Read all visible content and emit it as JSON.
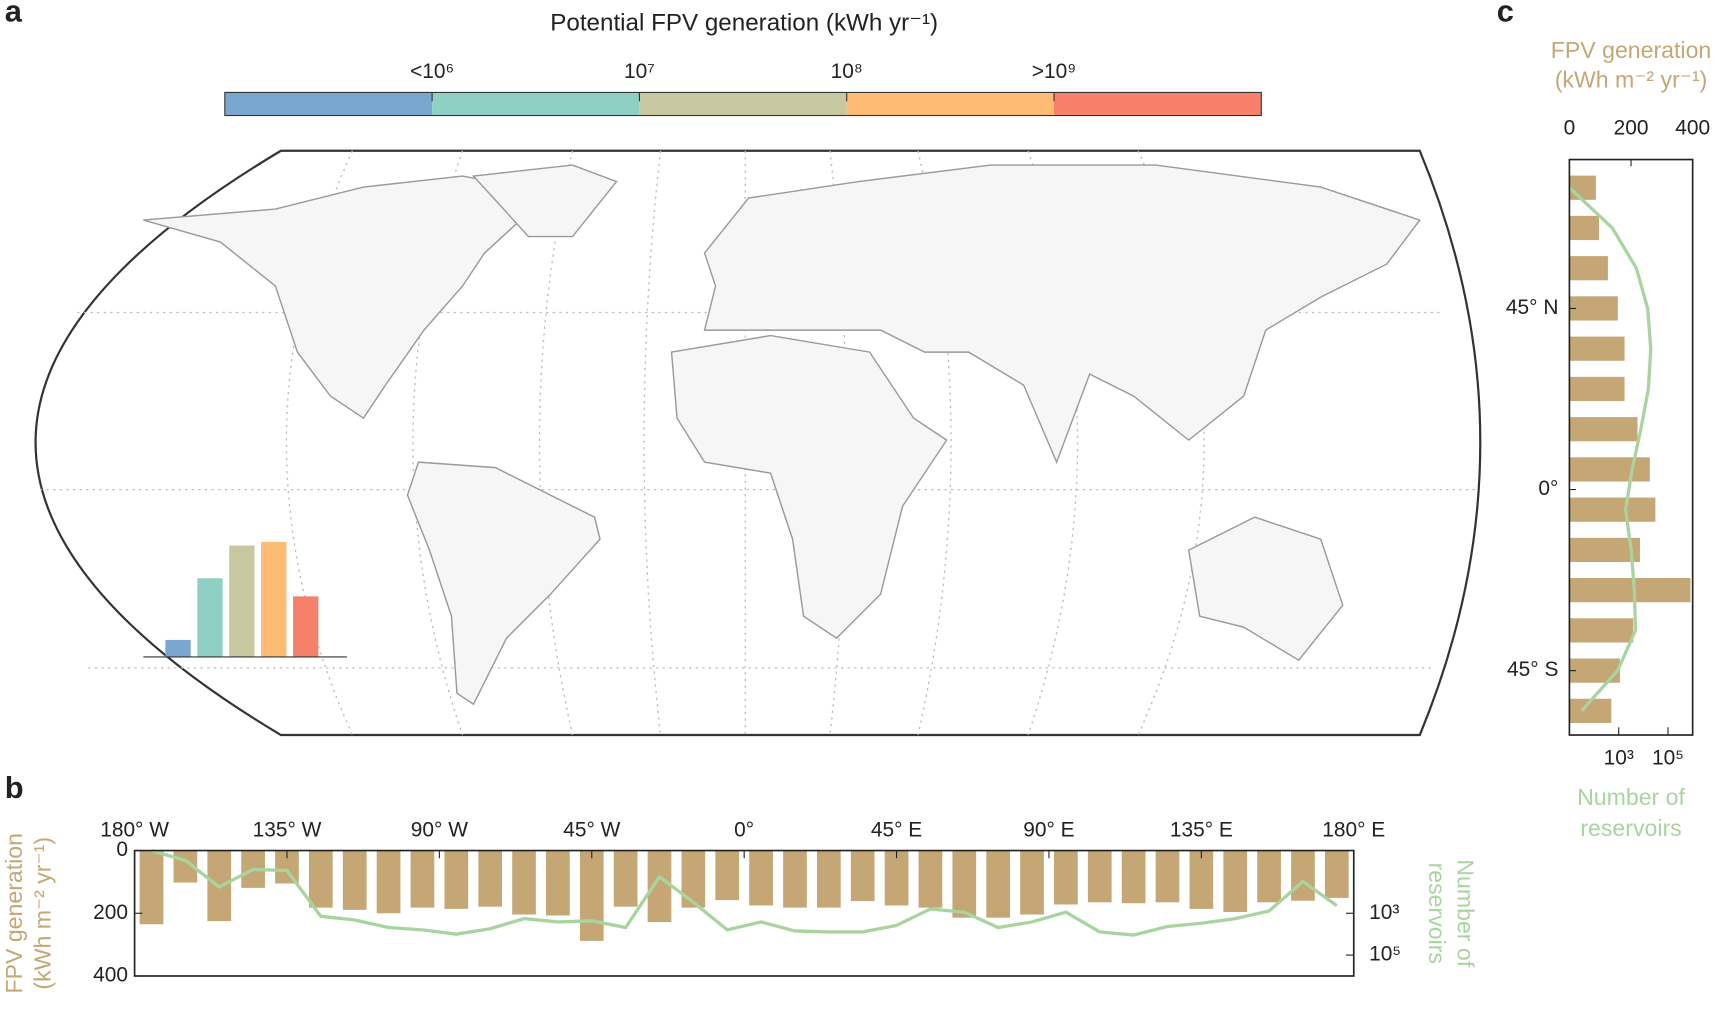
{
  "panel_labels": [
    "a",
    "b",
    "c"
  ],
  "chart_data": [
    {
      "type": "colorbar",
      "title": "Potential FPV generation (kWh yr⁻¹)",
      "colors": [
        "#7aa7d0",
        "#8ed0c4",
        "#c8c8a0",
        "#fdbb74",
        "#f7806b"
      ],
      "tick_labels": [
        "<10⁶",
        "10⁷",
        "10⁸",
        ">10⁹"
      ]
    },
    {
      "type": "bar",
      "categories": [
        null,
        null,
        null,
        null,
        null
      ],
      "values": [
        14,
        65,
        92,
        95,
        50
      ],
      "ylim": [
        0,
        100
      ],
      "colors": [
        "#7aa7d0",
        "#8ed0c4",
        "#c8c8a0",
        "#fdbb74",
        "#f7806b"
      ]
    },
    {
      "type": "bar+line",
      "x": [
        -175,
        -165,
        -155,
        -145,
        -135,
        -125,
        -115,
        -105,
        -95,
        -85,
        -75,
        -65,
        -55,
        -45,
        -35,
        -25,
        -15,
        -5,
        5,
        15,
        25,
        35,
        45,
        55,
        65,
        75,
        85,
        95,
        105,
        115,
        125,
        135,
        145,
        155,
        165,
        175
      ],
      "xlim": [
        -180,
        180
      ],
      "xticks": [
        {
          "value": -180,
          "label": "180° W"
        },
        {
          "value": -135,
          "label": "135° W"
        },
        {
          "value": -90,
          "label": "90° W"
        },
        {
          "value": -45,
          "label": "45° W"
        },
        {
          "value": 0,
          "label": "0°"
        },
        {
          "value": 45,
          "label": "45° E"
        },
        {
          "value": 90,
          "label": "90° E"
        },
        {
          "value": 135,
          "label": "135° E"
        },
        {
          "value": 180,
          "label": "180° E"
        }
      ],
      "ylabel": [
        "FPV generation",
        "(kWh m⁻² yr⁻¹)"
      ],
      "ylim": [
        0,
        400
      ],
      "yticks": [
        0,
        200,
        400
      ],
      "y2label": [
        "Number of",
        "reservoirs"
      ],
      "y2lim": [
        1,
        1000000
      ],
      "y2scale": "log",
      "y2ticks": [
        {
          "value": 1000,
          "label": "10³"
        },
        {
          "value": 100000,
          "label": "10⁵"
        }
      ],
      "series": [
        {
          "color": "#c4a774",
          "values": [
            235,
            102,
            225,
            119,
            105,
            182,
            189,
            200,
            182,
            186,
            179,
            204,
            207,
            288,
            179,
            228,
            182,
            158,
            175,
            182,
            182,
            161,
            175,
            182,
            214,
            214,
            204,
            172,
            165,
            168,
            165,
            186,
            196,
            165,
            160,
            151
          ]
        },
        {
          "color": "#a9d4a0",
          "axis": "y2",
          "values": [
            1,
            3,
            55,
            8,
            9,
            1400,
            2100,
            4800,
            6200,
            10000,
            5500,
            1800,
            2600,
            2300,
            4800,
            18,
            300,
            6200,
            2600,
            7000,
            7800,
            7800,
            3800,
            620,
            890,
            4800,
            2600,
            890,
            7800,
            11000,
            4300,
            3000,
            1800,
            780,
            30,
            430
          ]
        }
      ]
    },
    {
      "type": "barh+line",
      "y": [
        75,
        65,
        55,
        45,
        35,
        25,
        15,
        5,
        -5,
        -15,
        -25,
        -35,
        -45,
        -55
      ],
      "ylim": [
        -61,
        82
      ],
      "yticks": [
        {
          "value": 45,
          "label": "45° N"
        },
        {
          "value": 0,
          "label": "0°"
        },
        {
          "value": -45,
          "label": "45° S"
        }
      ],
      "xlabel": [
        "FPV generation",
        "(kWh m⁻² yr⁻¹)"
      ],
      "xlim": [
        0,
        400
      ],
      "xticks": [
        0,
        200,
        400
      ],
      "x2label": [
        "Number of",
        "reservoirs"
      ],
      "x2lim": [
        10,
        1000000
      ],
      "x2scale": "log",
      "x2ticks": [
        {
          "value": 1000,
          "label": "10³"
        },
        {
          "value": 100000,
          "label": "10⁵"
        }
      ],
      "series": [
        {
          "color": "#c4a774",
          "values": [
            86,
            96,
            125,
            157,
            179,
            179,
            221,
            261,
            279,
            229,
            393,
            207,
            164,
            136
          ]
        },
        {
          "color": "#a9d4a0",
          "axis": "x2",
          "values": [
            10,
            550,
            5200,
            15000,
            20000,
            16000,
            7900,
            3500,
            1900,
            3200,
            4300,
            4800,
            900,
            31
          ]
        }
      ]
    }
  ]
}
